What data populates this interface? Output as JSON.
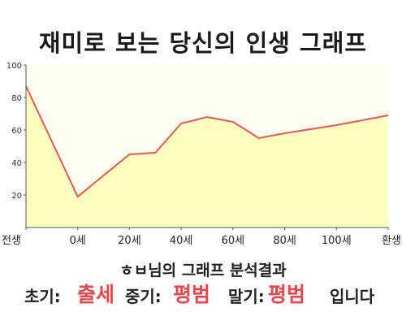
{
  "title": "재미로 보는 당신의 인생 그래프",
  "analysis_heading": "ㅎㅂ님의 그래프 분석결과",
  "result": {
    "early_label": "초기:",
    "early_value": "출세",
    "mid_label": "중기:",
    "mid_value": "평범",
    "late_label": "말기:",
    "late_value": "평범",
    "suffix": "입니다"
  },
  "colors": {
    "plot_background": "#fffff0",
    "area_fill": "#ffffc0",
    "line": "#e05a5a",
    "highlight_text": "#e8484d"
  },
  "chart_data": {
    "type": "area",
    "title": "",
    "xlabel": "",
    "ylabel": "",
    "ylim": [
      0,
      100
    ],
    "yticks": [
      20,
      40,
      60,
      80,
      100
    ],
    "x_tick_labels": [
      "전생",
      "0세",
      "20세",
      "40세",
      "60세",
      "80세",
      "100세",
      "환생"
    ],
    "grid": false,
    "series": [
      {
        "x": [
          "전생",
          "0세",
          "20세",
          "30세",
          "40세",
          "50세",
          "60세",
          "70세",
          "80세",
          "100세",
          "환생"
        ],
        "values": [
          87,
          19,
          45,
          46,
          64,
          68,
          65,
          55,
          58,
          63,
          69
        ]
      }
    ]
  }
}
